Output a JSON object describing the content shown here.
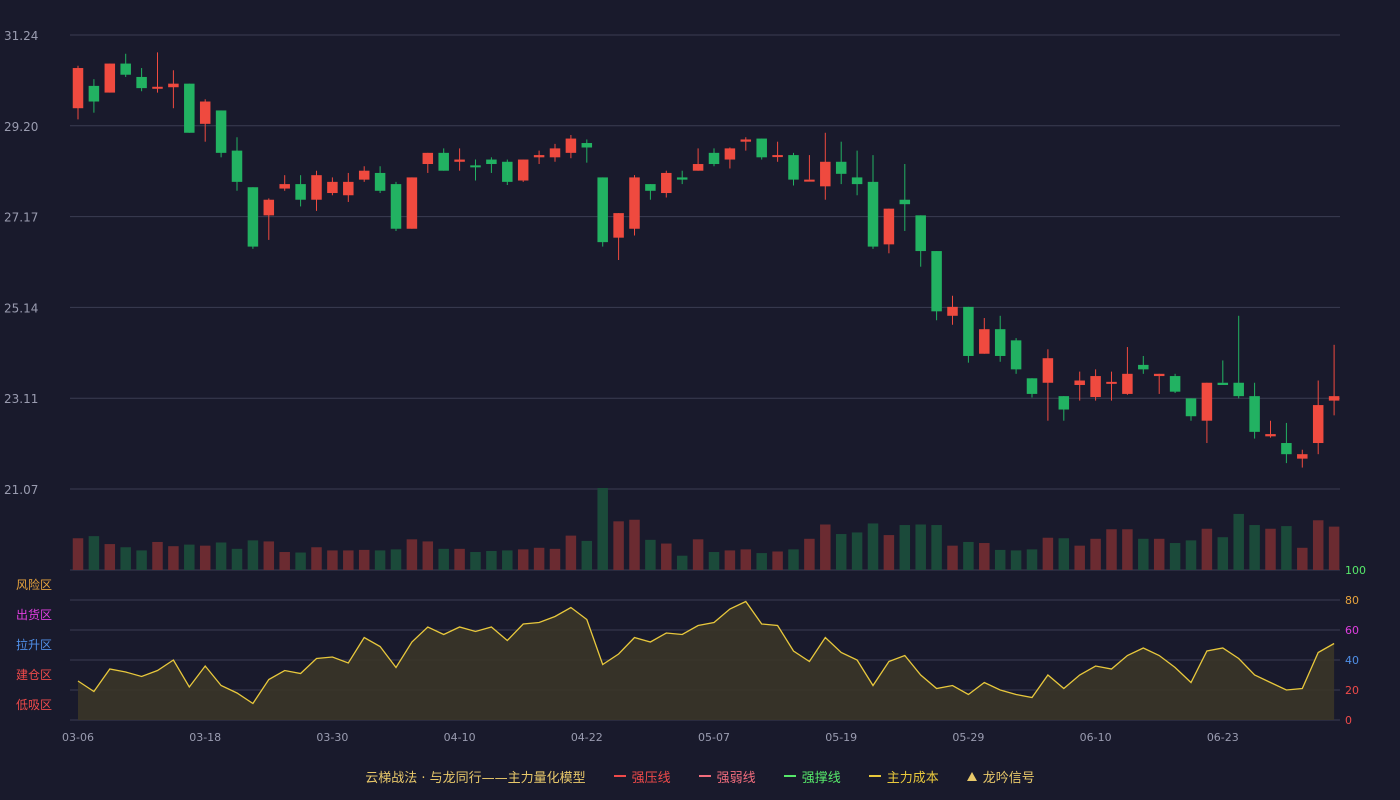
{
  "chart_data": {
    "type": "candlestick",
    "price_axis": {
      "ticks": [
        "31.24",
        "29.20",
        "27.17",
        "25.14",
        "23.11",
        "21.07"
      ],
      "min": 21.07,
      "max": 31.24
    },
    "indicator_axis": {
      "ticks": [
        "100",
        "80",
        "60",
        "40",
        "20",
        "0"
      ],
      "min": 0,
      "max": 100
    },
    "zones": [
      {
        "label": "风险区",
        "color": "#e8a33c"
      },
      {
        "label": "出货区",
        "color": "#e03ee0"
      },
      {
        "label": "拉升区",
        "color": "#4f8fe8"
      },
      {
        "label": "建仓区",
        "color": "#ef4a4a"
      },
      {
        "label": "低吸区",
        "color": "#ef4a4a"
      }
    ],
    "x_ticks": [
      {
        "label": "03-06",
        "index": 0
      },
      {
        "label": "03-18",
        "index": 8
      },
      {
        "label": "03-30",
        "index": 16
      },
      {
        "label": "04-10",
        "index": 24
      },
      {
        "label": "04-22",
        "index": 32
      },
      {
        "label": "05-07",
        "index": 40
      },
      {
        "label": "05-19",
        "index": 48
      },
      {
        "label": "05-29",
        "index": 56
      },
      {
        "label": "06-10",
        "index": 64
      },
      {
        "label": "06-23",
        "index": 72
      }
    ],
    "colors": {
      "up": "#ef4a3f",
      "down": "#22b262",
      "vol_up": "#6b2b31",
      "vol_down": "#1b4a3a",
      "line": "#e8c83c",
      "area": "#3a3528"
    },
    "candles": [
      [
        29.6,
        30.5,
        29.35,
        30.55
      ],
      [
        30.1,
        29.75,
        29.5,
        30.25
      ],
      [
        29.95,
        30.6,
        29.95,
        30.6
      ],
      [
        30.6,
        30.35,
        30.3,
        30.82
      ],
      [
        30.3,
        30.05,
        29.98,
        30.5
      ],
      [
        30.05,
        30.08,
        29.95,
        30.85
      ],
      [
        30.07,
        30.15,
        29.6,
        30.45
      ],
      [
        30.15,
        29.05,
        29.05,
        30.15
      ],
      [
        29.25,
        29.75,
        28.85,
        29.8
      ],
      [
        29.55,
        28.6,
        28.5,
        29.55
      ],
      [
        28.65,
        27.95,
        27.75,
        28.95
      ],
      [
        27.83,
        26.5,
        26.45,
        27.83
      ],
      [
        27.2,
        27.55,
        26.65,
        27.58
      ],
      [
        27.8,
        27.9,
        27.75,
        28.1
      ],
      [
        27.9,
        27.55,
        27.4,
        28.1
      ],
      [
        27.55,
        28.1,
        27.3,
        28.2
      ],
      [
        27.7,
        27.95,
        27.65,
        28.05
      ],
      [
        27.65,
        27.95,
        27.5,
        28.15
      ],
      [
        28.0,
        28.2,
        27.95,
        28.3
      ],
      [
        28.15,
        27.75,
        27.7,
        28.3
      ],
      [
        27.9,
        26.9,
        26.85,
        27.95
      ],
      [
        26.9,
        28.05,
        26.9,
        28.05
      ],
      [
        28.35,
        28.6,
        28.15,
        28.6
      ],
      [
        28.6,
        28.2,
        28.2,
        28.7
      ],
      [
        28.4,
        28.45,
        28.2,
        28.7
      ],
      [
        28.32,
        28.3,
        27.98,
        28.45
      ],
      [
        28.45,
        28.35,
        28.15,
        28.5
      ],
      [
        28.4,
        27.95,
        27.88,
        28.45
      ],
      [
        27.98,
        28.45,
        27.95,
        28.45
      ],
      [
        28.5,
        28.55,
        28.35,
        28.65
      ],
      [
        28.5,
        28.7,
        28.4,
        28.8
      ],
      [
        28.6,
        28.92,
        28.48,
        29.0
      ],
      [
        28.82,
        28.72,
        28.38,
        28.9
      ],
      [
        28.05,
        26.6,
        26.5,
        28.05
      ],
      [
        26.7,
        27.25,
        26.2,
        27.25
      ],
      [
        26.9,
        28.05,
        26.75,
        28.1
      ],
      [
        27.9,
        27.75,
        27.55,
        27.9
      ],
      [
        27.7,
        28.15,
        27.6,
        28.2
      ],
      [
        28.05,
        28.0,
        27.9,
        28.2
      ],
      [
        28.2,
        28.35,
        28.2,
        28.7
      ],
      [
        28.6,
        28.35,
        28.3,
        28.7
      ],
      [
        28.45,
        28.7,
        28.25,
        28.72
      ],
      [
        28.85,
        28.9,
        28.65,
        28.95
      ],
      [
        28.92,
        28.5,
        28.45,
        28.92
      ],
      [
        28.55,
        28.55,
        28.4,
        28.85
      ],
      [
        28.55,
        28.0,
        27.87,
        28.6
      ],
      [
        28.0,
        28.0,
        28.0,
        28.55
      ],
      [
        27.85,
        28.4,
        27.55,
        29.05
      ],
      [
        28.4,
        28.13,
        27.9,
        28.85
      ],
      [
        28.05,
        27.9,
        27.65,
        28.65
      ],
      [
        27.95,
        26.5,
        26.45,
        28.55
      ],
      [
        26.55,
        27.35,
        26.35,
        27.35
      ],
      [
        27.55,
        27.45,
        26.85,
        28.35
      ],
      [
        27.2,
        26.4,
        26.05,
        27.2
      ],
      [
        26.4,
        25.05,
        24.85,
        26.4
      ],
      [
        24.95,
        25.15,
        24.75,
        25.4
      ],
      [
        25.15,
        24.05,
        23.9,
        25.15
      ],
      [
        24.1,
        24.65,
        24.1,
        24.9
      ],
      [
        24.65,
        24.05,
        23.92,
        24.95
      ],
      [
        24.4,
        23.75,
        23.65,
        24.45
      ],
      [
        23.55,
        23.2,
        23.12,
        23.55
      ],
      [
        23.45,
        24.0,
        22.6,
        24.2
      ],
      [
        23.15,
        22.85,
        22.6,
        23.15
      ],
      [
        23.4,
        23.5,
        23.05,
        23.7
      ],
      [
        23.13,
        23.6,
        23.05,
        23.75
      ],
      [
        23.47,
        23.47,
        23.05,
        23.7
      ],
      [
        23.2,
        23.65,
        23.18,
        24.25
      ],
      [
        23.85,
        23.75,
        23.65,
        24.05
      ],
      [
        23.6,
        23.65,
        23.2,
        23.65
      ],
      [
        23.6,
        23.25,
        23.22,
        23.65
      ],
      [
        23.1,
        22.7,
        22.6,
        23.1
      ],
      [
        22.6,
        23.45,
        22.1,
        23.45
      ],
      [
        23.45,
        23.4,
        23.45,
        23.95
      ],
      [
        23.45,
        23.15,
        23.1,
        24.95
      ],
      [
        23.15,
        22.35,
        22.2,
        23.45
      ],
      [
        22.25,
        22.3,
        22.22,
        22.6
      ],
      [
        22.1,
        21.85,
        21.65,
        22.55
      ],
      [
        21.75,
        21.85,
        21.55,
        21.95
      ],
      [
        22.1,
        22.95,
        21.85,
        23.5
      ],
      [
        23.05,
        23.15,
        22.72,
        24.3
      ]
    ],
    "volume": [
      60,
      64,
      49,
      43,
      37,
      53,
      45,
      48,
      46,
      52,
      40,
      56,
      54,
      34,
      33,
      43,
      37,
      37,
      38,
      37,
      39,
      58,
      54,
      40,
      40,
      34,
      36,
      37,
      39,
      42,
      40,
      65,
      55,
      155,
      92,
      95,
      57,
      50,
      27,
      58,
      34,
      37,
      39,
      32,
      35,
      39,
      59,
      86,
      68,
      71,
      88,
      66,
      85,
      86,
      85,
      46,
      53,
      51,
      38,
      37,
      39,
      61,
      60,
      46,
      59,
      77,
      77,
      59,
      59,
      51,
      56,
      78,
      62,
      106,
      85,
      78,
      83,
      42,
      94,
      82
    ],
    "indicator": [
      26,
      19,
      34,
      32,
      29,
      33,
      40,
      22,
      36,
      23,
      18,
      11,
      27,
      33,
      31,
      41,
      42,
      38,
      55,
      49,
      35,
      52,
      62,
      57,
      62,
      59,
      62,
      53,
      64,
      65,
      69,
      75,
      67,
      37,
      44,
      55,
      52,
      58,
      57,
      63,
      65,
      74,
      79,
      64,
      63,
      46,
      39,
      55,
      45,
      40,
      23,
      39,
      43,
      30,
      21,
      23,
      17,
      25,
      20,
      17,
      15,
      30,
      21,
      30,
      36,
      34,
      43,
      48,
      43,
      35,
      25,
      46,
      48,
      41,
      30,
      25,
      20,
      21,
      45,
      51
    ]
  },
  "legend": {
    "title": "云梯战法 · 与龙同行——主力量化模型",
    "items": [
      {
        "label": "强压线",
        "color": "#ef4a4a",
        "style": "solid"
      },
      {
        "label": "强弱线",
        "color": "#f26d7d",
        "style": "dash"
      },
      {
        "label": "强撑线",
        "color": "#56e86a",
        "style": "solid"
      },
      {
        "label": "主力成本",
        "color": "#e8c83c",
        "style": "dash"
      },
      {
        "label": "龙吟信号",
        "color": "#e8c86a",
        "style": "triangle"
      }
    ]
  }
}
